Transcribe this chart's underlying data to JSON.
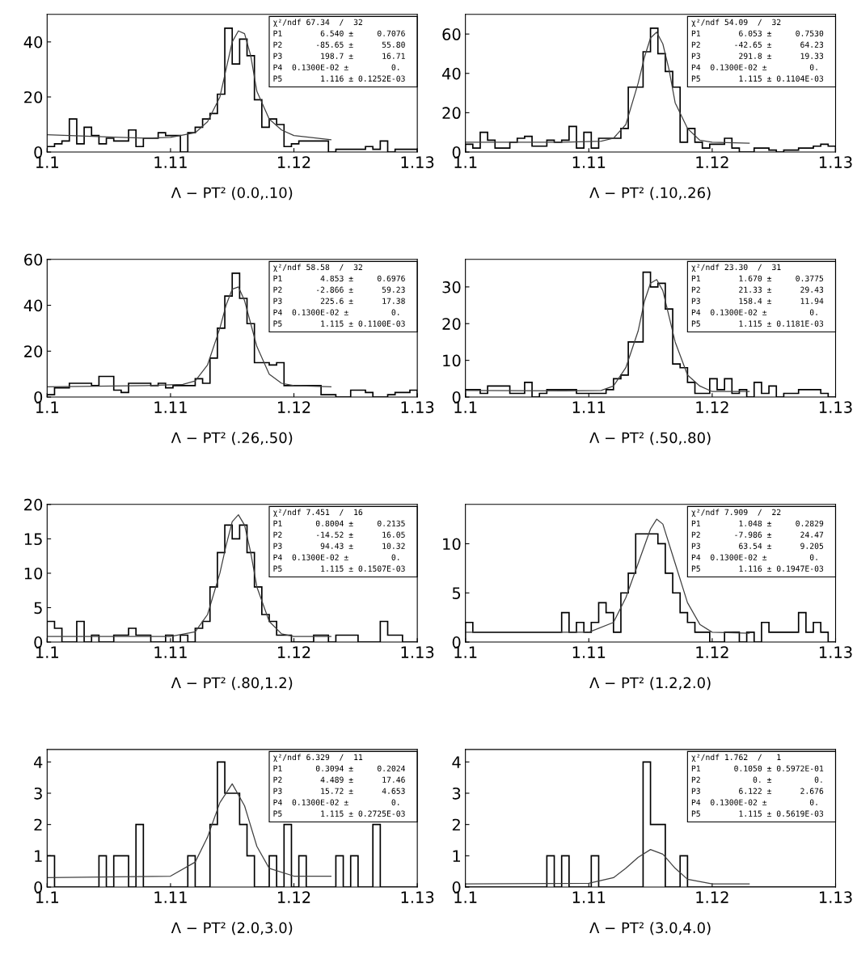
{
  "chart_data": [
    {
      "type": "histogram",
      "xlabel": "Λ − PT² (0.0,.10)",
      "color": "#000000",
      "xlim": [
        1.1,
        1.13
      ],
      "xticks": [
        1.1,
        1.11,
        1.12,
        1.13
      ],
      "ylim": [
        0,
        50
      ],
      "yticks": [
        0,
        20,
        40
      ],
      "grid": false,
      "bins": [
        1.1,
        1.1006,
        1.1012,
        1.1018,
        1.1024,
        1.103,
        1.1036,
        1.1042,
        1.1048,
        1.1054,
        1.106,
        1.1066,
        1.1072,
        1.1078,
        1.1084,
        1.109,
        1.1096,
        1.1102,
        1.1108,
        1.1114,
        1.112,
        1.1126,
        1.1132,
        1.1138,
        1.1144,
        1.115,
        1.1156,
        1.1162,
        1.1168,
        1.1174,
        1.118,
        1.1186,
        1.1192,
        1.1198,
        1.1204,
        1.121,
        1.1216,
        1.1222,
        1.1228,
        1.1234,
        1.124,
        1.1246,
        1.1252,
        1.1258,
        1.1264,
        1.127,
        1.1276,
        1.1282,
        1.1288,
        1.1294,
        1.13
      ],
      "values": [
        2,
        3,
        4,
        12,
        3,
        9,
        6,
        3,
        5,
        4,
        4,
        8,
        2,
        5,
        5,
        7,
        6,
        6,
        0,
        7,
        9,
        12,
        14,
        21,
        45,
        32,
        41,
        35,
        19,
        9,
        12,
        10,
        2,
        3,
        4,
        4,
        4,
        4,
        0,
        1,
        1,
        1,
        1,
        2,
        1,
        4,
        0,
        1,
        1,
        1
      ],
      "series": [
        {
          "type": "line",
          "color": "#404040",
          "x": [
            1.1,
            1.105,
            1.108,
            1.11,
            1.112,
            1.113,
            1.114,
            1.1145,
            1.115,
            1.1155,
            1.116,
            1.1165,
            1.117,
            1.118,
            1.119,
            1.12,
            1.123
          ],
          "values": [
            6.3,
            5.5,
            5,
            5.3,
            7,
            11,
            20,
            30,
            40,
            44,
            43,
            35,
            22,
            12,
            8,
            6,
            4.5
          ]
        }
      ],
      "annotations": [
        "χ²/ndf 67.34  /  32",
        "P1        6.540 ±     0.7076",
        "P2       -85.65 ±      55.80",
        "P3        198.7 ±      16.71",
        "P4  0.1300E-02 ±         0.",
        "P5        1.116 ± 0.1252E-03"
      ]
    },
    {
      "type": "histogram",
      "xlabel": "Λ − PT² (.10,.26)",
      "color": "#000000",
      "xlim": [
        1.1,
        1.13
      ],
      "xticks": [
        1.1,
        1.11,
        1.12,
        1.13
      ],
      "ylim": [
        0,
        70
      ],
      "yticks": [
        0,
        20,
        40,
        60
      ],
      "grid": false,
      "bins": [
        1.1,
        1.1006,
        1.1012,
        1.1018,
        1.1024,
        1.103,
        1.1036,
        1.1042,
        1.1048,
        1.1054,
        1.106,
        1.1066,
        1.1072,
        1.1078,
        1.1084,
        1.109,
        1.1096,
        1.1102,
        1.1108,
        1.1114,
        1.112,
        1.1126,
        1.1132,
        1.1138,
        1.1144,
        1.115,
        1.1156,
        1.1162,
        1.1168,
        1.1174,
        1.118,
        1.1186,
        1.1192,
        1.1198,
        1.1204,
        1.121,
        1.1216,
        1.1222,
        1.1228,
        1.1234,
        1.124,
        1.1246,
        1.1252,
        1.1258,
        1.1264,
        1.127,
        1.1276,
        1.1282,
        1.1288,
        1.1294,
        1.13
      ],
      "values": [
        4,
        2,
        10,
        6,
        2,
        2,
        5,
        7,
        8,
        3,
        3,
        6,
        5,
        6,
        13,
        2,
        10,
        2,
        7,
        7,
        7,
        12,
        33,
        33,
        51,
        63,
        50,
        41,
        33,
        5,
        12,
        5,
        2,
        4,
        4,
        7,
        2,
        0,
        0,
        2,
        2,
        1,
        0,
        1,
        1,
        2,
        2,
        3,
        4,
        3
      ],
      "series": [
        {
          "type": "line",
          "color": "#404040",
          "x": [
            1.1,
            1.108,
            1.111,
            1.112,
            1.113,
            1.114,
            1.1145,
            1.115,
            1.1155,
            1.116,
            1.1165,
            1.117,
            1.118,
            1.119,
            1.12,
            1.123
          ],
          "values": [
            5,
            5,
            5.5,
            7,
            14,
            35,
            48,
            58,
            61,
            55,
            42,
            25,
            12,
            6,
            5,
            4.5
          ]
        }
      ],
      "annotations": [
        "χ²/ndf 54.09  /  32",
        "P1        6.053 ±     0.7530",
        "P2       -42.65 ±      64.23",
        "P3        291.8 ±      19.33",
        "P4  0.1300E-02 ±         0.",
        "P5        1.115 ± 0.1104E-03"
      ]
    },
    {
      "type": "histogram",
      "xlabel": "Λ − PT² (.26,.50)",
      "color": "#000000",
      "xlim": [
        1.1,
        1.13
      ],
      "xticks": [
        1.1,
        1.11,
        1.12,
        1.13
      ],
      "ylim": [
        0,
        60
      ],
      "yticks": [
        0,
        20,
        40,
        60
      ],
      "grid": false,
      "bins": [
        1.1,
        1.1006,
        1.1012,
        1.1018,
        1.1024,
        1.103,
        1.1036,
        1.1042,
        1.1048,
        1.1054,
        1.106,
        1.1066,
        1.1072,
        1.1078,
        1.1084,
        1.109,
        1.1096,
        1.1102,
        1.1108,
        1.1114,
        1.112,
        1.1126,
        1.1132,
        1.1138,
        1.1144,
        1.115,
        1.1156,
        1.1162,
        1.1168,
        1.1174,
        1.118,
        1.1186,
        1.1192,
        1.1198,
        1.1204,
        1.121,
        1.1216,
        1.1222,
        1.1228,
        1.1234,
        1.124,
        1.1246,
        1.1252,
        1.1258,
        1.1264,
        1.127,
        1.1276,
        1.1282,
        1.1288,
        1.1294,
        1.13
      ],
      "values": [
        1,
        4,
        4,
        6,
        6,
        6,
        5,
        9,
        9,
        3,
        2,
        6,
        6,
        6,
        5,
        6,
        4,
        5,
        5,
        5,
        8,
        6,
        17,
        30,
        44,
        54,
        43,
        32,
        15,
        15,
        14,
        15,
        5,
        5,
        5,
        5,
        5,
        1,
        1,
        0,
        0,
        3,
        3,
        2,
        0,
        0,
        1,
        2,
        2,
        3
      ],
      "series": [
        {
          "type": "line",
          "color": "#404040",
          "x": [
            1.1,
            1.108,
            1.111,
            1.112,
            1.113,
            1.114,
            1.1145,
            1.115,
            1.1155,
            1.116,
            1.1165,
            1.117,
            1.118,
            1.119,
            1.12,
            1.123
          ],
          "values": [
            4.5,
            5,
            5.5,
            7,
            14,
            30,
            40,
            47,
            48,
            42,
            32,
            22,
            10,
            6,
            5,
            4.5
          ]
        }
      ],
      "annotations": [
        "χ²/ndf 58.58  /  32",
        "P1        4.853 ±     0.6976",
        "P2       -2.866 ±      59.23",
        "P3        225.6 ±      17.38",
        "P4  0.1300E-02 ±         0.",
        "P5        1.115 ± 0.1100E-03"
      ]
    },
    {
      "type": "histogram",
      "xlabel": "Λ − PT² (.50,.80)",
      "color": "#000000",
      "xlim": [
        1.1,
        1.13
      ],
      "xticks": [
        1.1,
        1.11,
        1.12,
        1.13
      ],
      "ylim": [
        0,
        37.5
      ],
      "yticks": [
        0,
        10,
        20,
        30
      ],
      "grid": false,
      "bins": [
        1.1,
        1.1006,
        1.1012,
        1.1018,
        1.1024,
        1.103,
        1.1036,
        1.1042,
        1.1048,
        1.1054,
        1.106,
        1.1066,
        1.1072,
        1.1078,
        1.1084,
        1.109,
        1.1096,
        1.1102,
        1.1108,
        1.1114,
        1.112,
        1.1126,
        1.1132,
        1.1138,
        1.1144,
        1.115,
        1.1156,
        1.1162,
        1.1168,
        1.1174,
        1.118,
        1.1186,
        1.1192,
        1.1198,
        1.1204,
        1.121,
        1.1216,
        1.1222,
        1.1228,
        1.1234,
        1.124,
        1.1246,
        1.1252,
        1.1258,
        1.1264,
        1.127,
        1.1276,
        1.1282,
        1.1288,
        1.1294,
        1.13
      ],
      "values": [
        2,
        2,
        1,
        3,
        3,
        3,
        1,
        1,
        4,
        0,
        1,
        2,
        2,
        2,
        2,
        1,
        1,
        1,
        1,
        2,
        5,
        6,
        15,
        15,
        34,
        30,
        31,
        24,
        9,
        8,
        4,
        1,
        1,
        5,
        2,
        5,
        1,
        2,
        0,
        4,
        1,
        3,
        0,
        1,
        1,
        2,
        2,
        2,
        1,
        0
      ],
      "series": [
        {
          "type": "line",
          "color": "#404040",
          "x": [
            1.1,
            1.108,
            1.111,
            1.112,
            1.113,
            1.114,
            1.1145,
            1.115,
            1.1155,
            1.116,
            1.1165,
            1.117,
            1.118,
            1.119,
            1.12,
            1.123
          ],
          "values": [
            1.8,
            1.7,
            1.8,
            3,
            8,
            18,
            26,
            31,
            32,
            29,
            22,
            15,
            6,
            3,
            1.5,
            1.5
          ]
        }
      ],
      "annotations": [
        "χ²/ndf 23.30  /  31",
        "P1        1.670 ±     0.3775",
        "P2        21.33 ±      29.43",
        "P3        158.4 ±      11.94",
        "P4  0.1300E-02 ±         0.",
        "P5        1.115 ± 0.1181E-03"
      ]
    },
    {
      "type": "histogram",
      "xlabel": "Λ − PT² (.80,1.2)",
      "color": "#000000",
      "xlim": [
        1.1,
        1.13
      ],
      "xticks": [
        1.1,
        1.11,
        1.12,
        1.13
      ],
      "ylim": [
        0,
        20
      ],
      "yticks": [
        0,
        5,
        10,
        15,
        20
      ],
      "grid": false,
      "bins": [
        1.1,
        1.1006,
        1.1012,
        1.1018,
        1.1024,
        1.103,
        1.1036,
        1.1042,
        1.1048,
        1.1054,
        1.106,
        1.1066,
        1.1072,
        1.1078,
        1.1084,
        1.109,
        1.1096,
        1.1102,
        1.1108,
        1.1114,
        1.112,
        1.1126,
        1.1132,
        1.1138,
        1.1144,
        1.115,
        1.1156,
        1.1162,
        1.1168,
        1.1174,
        1.118,
        1.1186,
        1.1192,
        1.1198,
        1.1204,
        1.121,
        1.1216,
        1.1222,
        1.1228,
        1.1234,
        1.124,
        1.1246,
        1.1252,
        1.1258,
        1.1264,
        1.127,
        1.1276,
        1.1282,
        1.1288,
        1.1294,
        1.13
      ],
      "values": [
        3,
        2,
        0,
        0,
        3,
        0,
        1,
        0,
        0,
        1,
        1,
        2,
        1,
        1,
        0,
        0,
        1,
        0,
        1,
        0,
        2,
        3,
        8,
        13,
        17,
        15,
        17,
        13,
        8,
        4,
        3,
        1,
        1,
        0,
        0,
        0,
        1,
        1,
        0,
        1,
        1,
        1,
        0,
        0,
        0,
        3,
        1,
        1,
        0,
        0
      ],
      "series": [
        {
          "type": "line",
          "color": "#404040",
          "x": [
            1.1,
            1.11,
            1.112,
            1.113,
            1.114,
            1.1145,
            1.115,
            1.1155,
            1.116,
            1.1165,
            1.117,
            1.118,
            1.119,
            1.12,
            1.123
          ],
          "values": [
            0.8,
            0.8,
            1.5,
            4,
            10,
            14,
            17.5,
            18.5,
            17,
            13,
            8,
            3,
            1.2,
            0.8,
            0.8
          ]
        }
      ],
      "annotations": [
        "χ²/ndf 7.451  /  16",
        "P1       0.8004 ±     0.2135",
        "P2       -14.52 ±      16.05",
        "P3        94.43 ±      10.32",
        "P4  0.1300E-02 ±         0.",
        "P5        1.115 ± 0.1507E-03"
      ]
    },
    {
      "type": "histogram",
      "xlabel": "Λ − PT² (1.2,2.0)",
      "color": "#000000",
      "xlim": [
        1.1,
        1.13
      ],
      "xticks": [
        1.1,
        1.11,
        1.12,
        1.13
      ],
      "ylim": [
        0,
        14
      ],
      "yticks": [
        0,
        5,
        10
      ],
      "grid": false,
      "bins": [
        1.1,
        1.1006,
        1.1012,
        1.1018,
        1.1024,
        1.103,
        1.1036,
        1.1042,
        1.1048,
        1.1054,
        1.106,
        1.1066,
        1.1072,
        1.1078,
        1.1084,
        1.109,
        1.1096,
        1.1102,
        1.1108,
        1.1114,
        1.112,
        1.1126,
        1.1132,
        1.1138,
        1.1144,
        1.115,
        1.1156,
        1.1162,
        1.1168,
        1.1174,
        1.118,
        1.1186,
        1.1192,
        1.1198,
        1.1204,
        1.121,
        1.1216,
        1.1222,
        1.1228,
        1.1234,
        1.124,
        1.1246,
        1.1252,
        1.1258,
        1.1264,
        1.127,
        1.1276,
        1.1282,
        1.1288,
        1.1294,
        1.13
      ],
      "values": [
        2,
        1,
        1,
        1,
        1,
        1,
        1,
        1,
        1,
        1,
        1,
        1,
        1,
        3,
        1,
        2,
        1,
        2,
        4,
        3,
        1,
        5,
        7,
        11,
        11,
        11,
        10,
        7,
        5,
        3,
        2,
        1,
        1,
        0,
        0,
        1,
        1,
        0,
        1,
        0,
        2,
        1,
        1,
        1,
        1,
        3,
        1,
        2,
        1,
        0
      ],
      "series": [
        {
          "type": "line",
          "color": "#404040",
          "x": [
            1.1,
            1.11,
            1.112,
            1.113,
            1.114,
            1.115,
            1.1155,
            1.116,
            1.117,
            1.118,
            1.119,
            1.12,
            1.123
          ],
          "values": [
            1,
            1,
            2,
            4.5,
            8,
            11.5,
            12.5,
            12,
            8,
            4,
            1.8,
            1,
            0.9
          ]
        }
      ],
      "annotations": [
        "χ²/ndf 7.909  /  22",
        "P1        1.048 ±     0.2829",
        "P2       -7.986 ±      24.47",
        "P3        63.54 ±      9.205",
        "P4  0.1300E-02 ±         0.",
        "P5        1.116 ± 0.1947E-03"
      ]
    },
    {
      "type": "histogram",
      "xlabel": "Λ − PT² (2.0,3.0)",
      "color": "#000000",
      "xlim": [
        1.1,
        1.13
      ],
      "xticks": [
        1.1,
        1.11,
        1.12,
        1.13
      ],
      "ylim": [
        0,
        4.4
      ],
      "yticks": [
        0,
        1,
        2,
        3,
        4
      ],
      "grid": false,
      "bins": [
        1.1,
        1.1006,
        1.1012,
        1.1018,
        1.1024,
        1.103,
        1.1036,
        1.1042,
        1.1048,
        1.1054,
        1.106,
        1.1066,
        1.1072,
        1.1078,
        1.1084,
        1.109,
        1.1096,
        1.1102,
        1.1108,
        1.1114,
        1.112,
        1.1126,
        1.1132,
        1.1138,
        1.1144,
        1.115,
        1.1156,
        1.1162,
        1.1168,
        1.1174,
        1.118,
        1.1186,
        1.1192,
        1.1198,
        1.1204,
        1.121,
        1.1216,
        1.1222,
        1.1228,
        1.1234,
        1.124,
        1.1246,
        1.1252,
        1.1258,
        1.1264,
        1.127,
        1.1276,
        1.1282,
        1.1288,
        1.1294,
        1.13
      ],
      "values": [
        1,
        0,
        0,
        0,
        0,
        0,
        0,
        1,
        0,
        1,
        1,
        0,
        2,
        0,
        0,
        0,
        0,
        0,
        0,
        1,
        0,
        0,
        2,
        4,
        3,
        3,
        2,
        1,
        0,
        0,
        1,
        0,
        2,
        0,
        1,
        0,
        0,
        0,
        0,
        1,
        0,
        1,
        0,
        0,
        2,
        0,
        0,
        0,
        0,
        0
      ],
      "series": [
        {
          "type": "line",
          "color": "#404040",
          "x": [
            1.1,
            1.11,
            1.112,
            1.113,
            1.114,
            1.115,
            1.116,
            1.117,
            1.118,
            1.12,
            1.123
          ],
          "values": [
            0.3,
            0.35,
            0.8,
            1.6,
            2.7,
            3.3,
            2.6,
            1.3,
            0.6,
            0.35,
            0.35
          ]
        }
      ],
      "annotations": [
        "χ²/ndf 6.329  /  11",
        "P1       0.3094 ±     0.2024",
        "P2        4.489 ±      17.46",
        "P3        15.72 ±      4.653",
        "P4  0.1300E-02 ±         0.",
        "P5        1.115 ± 0.2725E-03"
      ]
    },
    {
      "type": "histogram",
      "xlabel": "Λ − PT² (3.0,4.0)",
      "color": "#000000",
      "xlim": [
        1.1,
        1.13
      ],
      "xticks": [
        1.1,
        1.11,
        1.12,
        1.13
      ],
      "ylim": [
        0,
        4.4
      ],
      "yticks": [
        0,
        1,
        2,
        3,
        4
      ],
      "grid": false,
      "bins": [
        1.1,
        1.1006,
        1.1012,
        1.1018,
        1.1024,
        1.103,
        1.1036,
        1.1042,
        1.1048,
        1.1054,
        1.106,
        1.1066,
        1.1072,
        1.1078,
        1.1084,
        1.109,
        1.1096,
        1.1102,
        1.1108,
        1.1114,
        1.112,
        1.1126,
        1.1132,
        1.1138,
        1.1144,
        1.115,
        1.1156,
        1.1162,
        1.1168,
        1.1174,
        1.118,
        1.1186,
        1.1192,
        1.1198,
        1.1204,
        1.121,
        1.1216,
        1.1222,
        1.1228,
        1.1234,
        1.124,
        1.1246,
        1.1252,
        1.1258,
        1.1264,
        1.127,
        1.1276,
        1.1282,
        1.1288,
        1.1294,
        1.13
      ],
      "values": [
        0,
        0,
        0,
        0,
        0,
        0,
        0,
        0,
        0,
        0,
        0,
        1,
        0,
        1,
        0,
        0,
        0,
        1,
        0,
        0,
        0,
        0,
        0,
        0,
        4,
        2,
        2,
        0,
        0,
        1,
        0,
        0,
        0,
        0,
        0,
        0,
        0,
        0,
        0,
        0,
        0,
        0,
        0,
        0,
        0,
        0,
        0,
        0,
        0,
        0
      ],
      "series": [
        {
          "type": "line",
          "color": "#404040",
          "x": [
            1.1,
            1.11,
            1.112,
            1.113,
            1.114,
            1.115,
            1.116,
            1.117,
            1.118,
            1.12,
            1.123
          ],
          "values": [
            0.1,
            0.12,
            0.3,
            0.6,
            0.95,
            1.2,
            1.05,
            0.6,
            0.25,
            0.1,
            0.1
          ]
        }
      ],
      "annotations": [
        "χ²/ndf 1.762  /   1",
        "P1       0.1050 ± 0.5972E-01",
        "P2           0. ±         0.",
        "P3        6.122 ±      2.676",
        "P4  0.1300E-02 ±         0.",
        "P5        1.115 ± 0.5619E-03"
      ]
    }
  ]
}
